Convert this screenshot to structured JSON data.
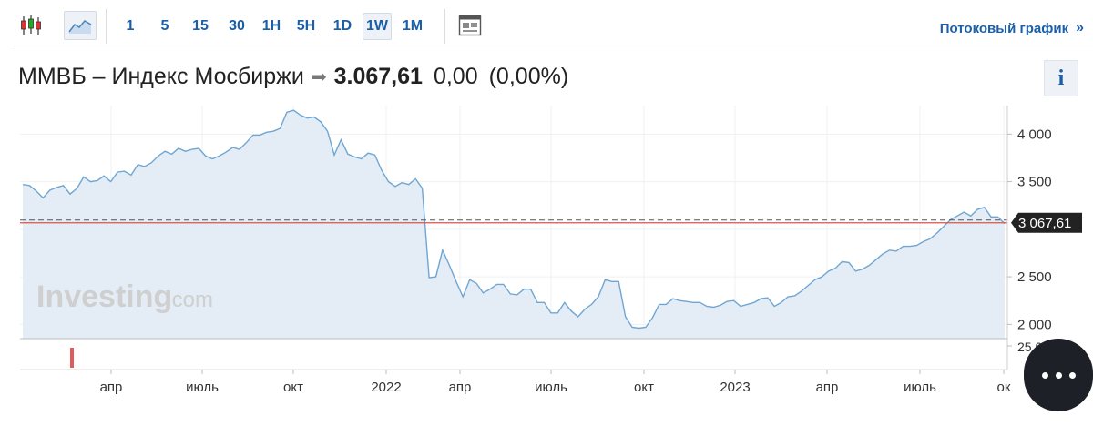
{
  "toolbar": {
    "timeframes": [
      "1",
      "5",
      "15",
      "30",
      "1H",
      "5H",
      "1D",
      "1W",
      "1M"
    ],
    "active_timeframe": "1W",
    "stream_label": "Потоковый график",
    "stream_chevron": "»"
  },
  "header": {
    "title": "ММВБ – Индекс Мосбиржи",
    "price": "3.067,61",
    "change": "0,00",
    "change_pct": "(0,00%)"
  },
  "info_label": "i",
  "watermark": {
    "brand": "Investing",
    "suffix": ".com"
  },
  "colors": {
    "line": "#6fa6d3",
    "area": "#e4edf6",
    "price_line": "#d9534f",
    "price_tag": "#222222",
    "accent": "#1a5fa8",
    "volume_bar": "#e05c5c"
  },
  "chart_data": {
    "type": "area",
    "title": "ММВБ – Индекс Мосбиржи",
    "xlabel": "",
    "ylabel": "",
    "x_tick_labels": [
      "апр",
      "июль",
      "окт",
      "2022",
      "апр",
      "июль",
      "окт",
      "2023",
      "апр",
      "июль",
      "ок"
    ],
    "y_ticks": [
      2000,
      2500,
      3000,
      3500,
      4000
    ],
    "y_tick_labels": [
      "2 000",
      "2 500",
      "",
      "3 500",
      "4 000"
    ],
    "ylim": [
      1850,
      4300
    ],
    "current_value": 3067.61,
    "current_value_label": "3 067,61",
    "volume_tick_label": "25,0",
    "grid": true,
    "series": [
      {
        "values": [
          3470,
          3460,
          3400,
          3330,
          3410,
          3440,
          3460,
          3370,
          3430,
          3550,
          3500,
          3510,
          3560,
          3500,
          3600,
          3610,
          3570,
          3680,
          3660,
          3700,
          3770,
          3820,
          3790,
          3850,
          3820,
          3840,
          3850,
          3770,
          3740,
          3770,
          3810,
          3860,
          3840,
          3910,
          3990,
          3990,
          4020,
          4030,
          4060,
          4230,
          4250,
          4200,
          4170,
          4180,
          4130,
          4030,
          3780,
          3940,
          3790,
          3760,
          3740,
          3800,
          3780,
          3620,
          3500,
          3450,
          3490,
          3470,
          3530,
          3430,
          2490,
          2500,
          2780,
          2620,
          2450,
          2290,
          2470,
          2430,
          2330,
          2370,
          2420,
          2420,
          2320,
          2310,
          2370,
          2370,
          2230,
          2230,
          2120,
          2120,
          2230,
          2140,
          2080,
          2160,
          2210,
          2290,
          2470,
          2450,
          2450,
          2080,
          1970,
          1960,
          1970,
          2070,
          2210,
          2210,
          2270,
          2250,
          2240,
          2230,
          2230,
          2190,
          2180,
          2200,
          2240,
          2250,
          2190,
          2210,
          2230,
          2270,
          2280,
          2190,
          2230,
          2290,
          2300,
          2350,
          2410,
          2470,
          2500,
          2560,
          2590,
          2660,
          2650,
          2560,
          2580,
          2620,
          2680,
          2740,
          2780,
          2770,
          2820,
          2820,
          2830,
          2870,
          2900,
          2960,
          3030,
          3100,
          3140,
          3180,
          3140,
          3210,
          3230,
          3130,
          3130,
          3060
        ]
      }
    ]
  }
}
